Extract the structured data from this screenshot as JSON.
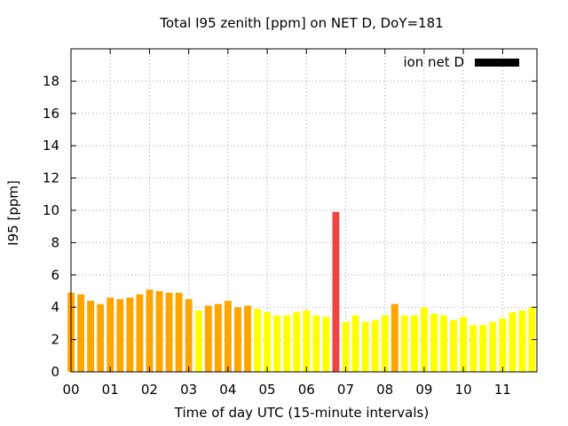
{
  "chart_data": {
    "type": "bar",
    "title": "Total I95 zenith [ppm] on NET D, DoY=181",
    "xlabel": "Time of day UTC (15-minute intervals)",
    "ylabel": "I95 [ppm]",
    "legend": {
      "label": "ion net D",
      "color": "#000000",
      "position": "top-right"
    },
    "ylim": [
      0,
      20
    ],
    "yticks": [
      0,
      2,
      4,
      6,
      8,
      10,
      12,
      14,
      16,
      18
    ],
    "xlim": [
      0,
      47.5
    ],
    "xtick_labels": [
      "00",
      "01",
      "02",
      "03",
      "04",
      "05",
      "06",
      "07",
      "08",
      "09",
      "10",
      "11"
    ],
    "grid": true,
    "colors": {
      "orange": "#ffa500",
      "yellow": "#ffff00",
      "red": "#ee4444"
    },
    "values": [
      4.9,
      4.8,
      4.4,
      4.2,
      4.6,
      4.5,
      4.6,
      4.8,
      5.1,
      5.0,
      4.9,
      4.9,
      4.5,
      3.8,
      4.1,
      4.2,
      4.4,
      4.0,
      4.1,
      3.9,
      3.7,
      3.5,
      3.5,
      3.7,
      3.8,
      3.5,
      3.4,
      9.9,
      3.1,
      3.5,
      3.1,
      3.2,
      3.5,
      4.2,
      3.5,
      3.5,
      4.0,
      3.6,
      3.5,
      3.2,
      3.4,
      2.9,
      2.9,
      3.1,
      3.3,
      3.7,
      3.8,
      4.0
    ],
    "bar_colors": [
      "orange",
      "orange",
      "orange",
      "orange",
      "orange",
      "orange",
      "orange",
      "orange",
      "orange",
      "orange",
      "orange",
      "orange",
      "orange",
      "yellow",
      "orange",
      "orange",
      "orange",
      "orange",
      "orange",
      "yellow",
      "yellow",
      "yellow",
      "yellow",
      "yellow",
      "yellow",
      "yellow",
      "yellow",
      "red",
      "yellow",
      "yellow",
      "yellow",
      "yellow",
      "yellow",
      "orange",
      "yellow",
      "yellow",
      "yellow",
      "yellow",
      "yellow",
      "yellow",
      "yellow",
      "yellow",
      "yellow",
      "yellow",
      "yellow",
      "yellow",
      "yellow",
      "yellow"
    ]
  }
}
